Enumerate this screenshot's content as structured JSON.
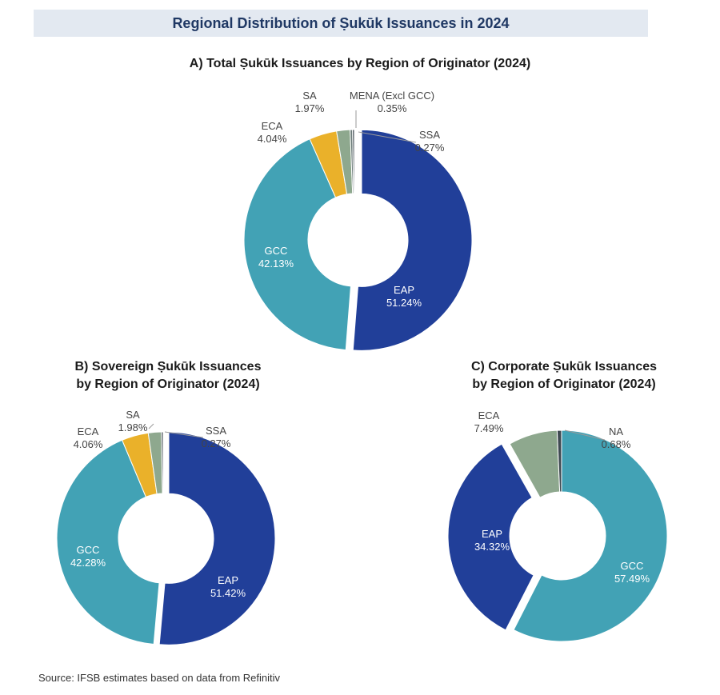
{
  "header": {
    "title": "Regional Distribution of Ṣukūk Issuances in 2024"
  },
  "source": "Source: IFSB estimates based on data from Refinitiv",
  "chart_data": [
    {
      "type": "pie",
      "title_lines": [
        "A) Total Ṣukūk Issuances by Region of Originator (2024)"
      ],
      "slices": [
        {
          "label": "EAP",
          "value": 51.24,
          "display": "51.24%",
          "color": "#213f99"
        },
        {
          "label": "GCC",
          "value": 42.13,
          "display": "42.13%",
          "color": "#42a2b5"
        },
        {
          "label": "ECA",
          "value": 4.04,
          "display": "4.04%",
          "color": "#eab12a"
        },
        {
          "label": "SA",
          "value": 1.97,
          "display": "1.97%",
          "color": "#8ea88e"
        },
        {
          "label": "MENA (Excl GCC)",
          "value": 0.35,
          "display": "0.35%",
          "color": "#6a7a78"
        },
        {
          "label": "SSA",
          "value": 0.27,
          "display": "0.27%",
          "color": "#3f4a52"
        }
      ]
    },
    {
      "type": "pie",
      "title_lines": [
        "B) Sovereign Ṣukūk Issuances",
        "by Region of Originator (2024)"
      ],
      "slices": [
        {
          "label": "EAP",
          "value": 51.42,
          "display": "51.42%",
          "color": "#213f99"
        },
        {
          "label": "GCC",
          "value": 42.28,
          "display": "42.28%",
          "color": "#42a2b5"
        },
        {
          "label": "ECA",
          "value": 4.06,
          "display": "4.06%",
          "color": "#eab12a"
        },
        {
          "label": "SA",
          "value": 1.98,
          "display": "1.98%",
          "color": "#8ea88e"
        },
        {
          "label": "SSA",
          "value": 0.27,
          "display": "0.27%",
          "color": "#3f4a52"
        }
      ]
    },
    {
      "type": "pie",
      "title_lines": [
        "C) Corporate Ṣukūk Issuances",
        "by Region of Originator (2024)"
      ],
      "slices": [
        {
          "label": "GCC",
          "value": 57.49,
          "display": "57.49%",
          "color": "#42a2b5"
        },
        {
          "label": "EAP",
          "value": 34.32,
          "display": "34.32%",
          "color": "#213f99"
        },
        {
          "label": "ECA",
          "value": 7.49,
          "display": "7.49%",
          "color": "#8ea88e"
        },
        {
          "label": "NA",
          "value": 0.68,
          "display": "0.68%",
          "color": "#3f4a52"
        }
      ]
    }
  ]
}
